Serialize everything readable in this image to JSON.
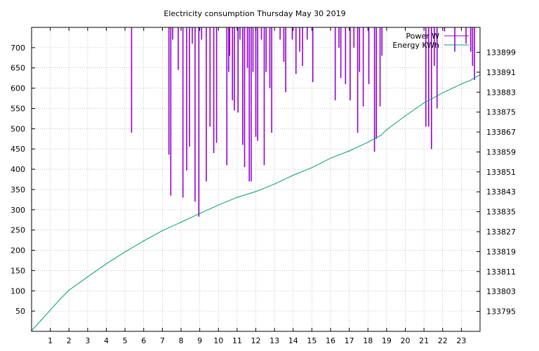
{
  "colors": {
    "power": "#9400d3",
    "energy": "#009e73",
    "grid": "#a0a0a0",
    "axis": "#000000",
    "background": "#ffffff"
  },
  "chart_data": {
    "type": "line",
    "title": "Electricity consumption Thursday May 30 2019",
    "xlabel": "",
    "ylabel": "",
    "y2label": "",
    "grid": true,
    "legend": "top-right",
    "xlim": [
      0,
      24
    ],
    "ylim": [
      0,
      750
    ],
    "y2lim": [
      133787,
      133909
    ],
    "xticks": [
      1,
      2,
      3,
      4,
      5,
      6,
      7,
      8,
      9,
      10,
      11,
      12,
      13,
      14,
      15,
      16,
      17,
      18,
      19,
      20,
      21,
      22,
      23
    ],
    "xtick_labels": [
      "1",
      "2",
      "3",
      "4",
      "5",
      "6",
      "7",
      "8",
      "9",
      "10",
      "11",
      "12",
      "13",
      "14",
      "15",
      "16",
      "17",
      "18",
      "19",
      "20",
      "21",
      "22",
      "23"
    ],
    "yticks": [
      50,
      100,
      150,
      200,
      250,
      300,
      350,
      400,
      450,
      500,
      550,
      600,
      650,
      700
    ],
    "ytick_labels": [
      "50",
      "100",
      "150",
      "200",
      "250",
      "300",
      "350",
      "400",
      "450",
      "500",
      "550",
      "600",
      "650",
      "700"
    ],
    "y2ticks": [
      133795,
      133803,
      133811,
      133819,
      133827,
      133835,
      133843,
      133851,
      133859,
      133867,
      133875,
      133883,
      133891,
      133899
    ],
    "y2tick_labels": [
      "133795",
      "133803",
      "133811",
      "133819",
      "133827",
      "133835",
      "133843",
      "133851",
      "133859",
      "133867",
      "133875",
      "133883",
      "133891",
      "133899"
    ],
    "series": [
      {
        "name": "Power W",
        "axis": "y1",
        "style": "impulses",
        "base": 750,
        "x": [
          5.35,
          7.35,
          7.45,
          7.55,
          7.85,
          8.1,
          8.3,
          8.45,
          8.6,
          8.75,
          8.95,
          9.1,
          9.35,
          9.55,
          9.75,
          9.9,
          10.45,
          10.55,
          10.6,
          10.75,
          10.85,
          11.05,
          11.15,
          11.3,
          11.4,
          11.55,
          11.65,
          11.75,
          11.85,
          12.0,
          12.1,
          12.3,
          12.45,
          12.55,
          12.75,
          12.85,
          13.3,
          13.5,
          13.6,
          13.95,
          14.15,
          14.35,
          14.5,
          14.75,
          15.05,
          16.25,
          16.45,
          16.55,
          16.8,
          17.05,
          17.25,
          17.45,
          17.55,
          17.75,
          18.05,
          18.35,
          18.45,
          18.65,
          18.75,
          21.1,
          21.25,
          21.4,
          21.55,
          21.7,
          22.1,
          22.65,
          23.25,
          23.5,
          23.6,
          23.7
        ],
        "values": [
          490,
          436,
          335,
          720,
          645,
          330,
          397,
          456,
          710,
          320,
          283,
          720,
          370,
          505,
          440,
          465,
          410,
          640,
          680,
          570,
          545,
          540,
          720,
          460,
          405,
          650,
          370,
          370,
          640,
          480,
          470,
          720,
          410,
          640,
          600,
          490,
          720,
          665,
          590,
          720,
          635,
          690,
          655,
          720,
          615,
          570,
          700,
          625,
          610,
          570,
          700,
          490,
          640,
          555,
          610,
          443,
          475,
          555,
          680,
          505,
          505,
          450,
          655,
          550,
          740,
          690,
          710,
          690,
          655,
          620
        ]
      },
      {
        "name": "Energy KWh",
        "axis": "y2",
        "style": "lines",
        "x": [
          0,
          0.5,
          1,
          1.5,
          2,
          3,
          4,
          5,
          6,
          7,
          8,
          9,
          10,
          11,
          12,
          13,
          14,
          15,
          16,
          17,
          18,
          18.7,
          19,
          20,
          21,
          22,
          23,
          23.5,
          24
        ],
        "values": [
          133787.3,
          133791.4,
          133795.5,
          133799.7,
          133803.5,
          133808.9,
          133814.1,
          133818.9,
          133823.3,
          133827.4,
          133830.8,
          133834.3,
          133837.7,
          133840.8,
          133843.1,
          133846.1,
          133849.7,
          133852.7,
          133856.5,
          133859.4,
          133862.9,
          133865.7,
          133867.9,
          133873.5,
          133878.7,
          133882.7,
          133886.3,
          133887.8,
          133890.0
        ]
      }
    ]
  }
}
